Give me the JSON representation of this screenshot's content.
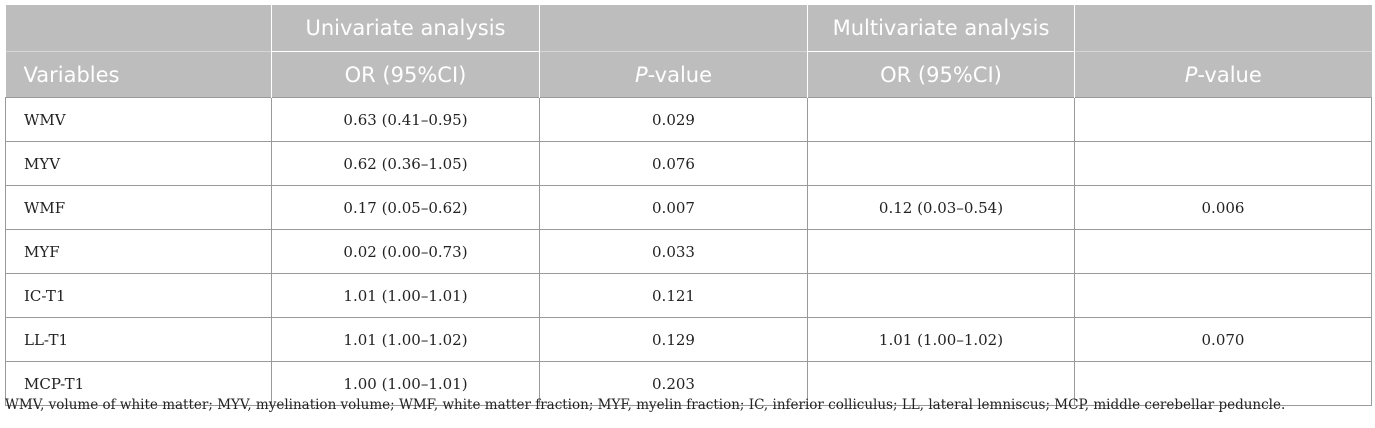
{
  "table": {
    "group_headers": {
      "univariate": "Univariate analysis",
      "multivariate": "Multivariate analysis"
    },
    "columns": {
      "variables": "Variables",
      "uni_or": "OR (95%CI)",
      "uni_p_italic": "P",
      "uni_p_rest": "-value",
      "multi_or": "OR (95%CI)",
      "multi_p_italic": "P",
      "multi_p_rest": "-value"
    },
    "rows": [
      {
        "variable": "WMV",
        "uni_or": "0.63 (0.41–0.95)",
        "uni_p": "0.029",
        "multi_or": "",
        "multi_p": ""
      },
      {
        "variable": "MYV",
        "uni_or": "0.62 (0.36–1.05)",
        "uni_p": "0.076",
        "multi_or": "",
        "multi_p": ""
      },
      {
        "variable": "WMF",
        "uni_or": "0.17 (0.05–0.62)",
        "uni_p": "0.007",
        "multi_or": "0.12 (0.03–0.54)",
        "multi_p": "0.006"
      },
      {
        "variable": "MYF",
        "uni_or": "0.02 (0.00–0.73)",
        "uni_p": "0.033",
        "multi_or": "",
        "multi_p": ""
      },
      {
        "variable": "IC-T1",
        "uni_or": "1.01 (1.00–1.01)",
        "uni_p": "0.121",
        "multi_or": "",
        "multi_p": ""
      },
      {
        "variable": "LL-T1",
        "uni_or": "1.01 (1.00–1.02)",
        "uni_p": "0.129",
        "multi_or": "1.01 (1.00–1.02)",
        "multi_p": "0.070"
      },
      {
        "variable": "MCP-T1",
        "uni_or": "1.00 (1.00–1.01)",
        "uni_p": "0.203",
        "multi_or": "",
        "multi_p": ""
      }
    ]
  },
  "footnote": "WMV, volume of white matter; MYV, myelination volume; WMF, white matter fraction; MYF, myelin fraction; IC, inferior colliculus; LL, lateral lemniscus; MCP, middle cerebellar peduncle."
}
